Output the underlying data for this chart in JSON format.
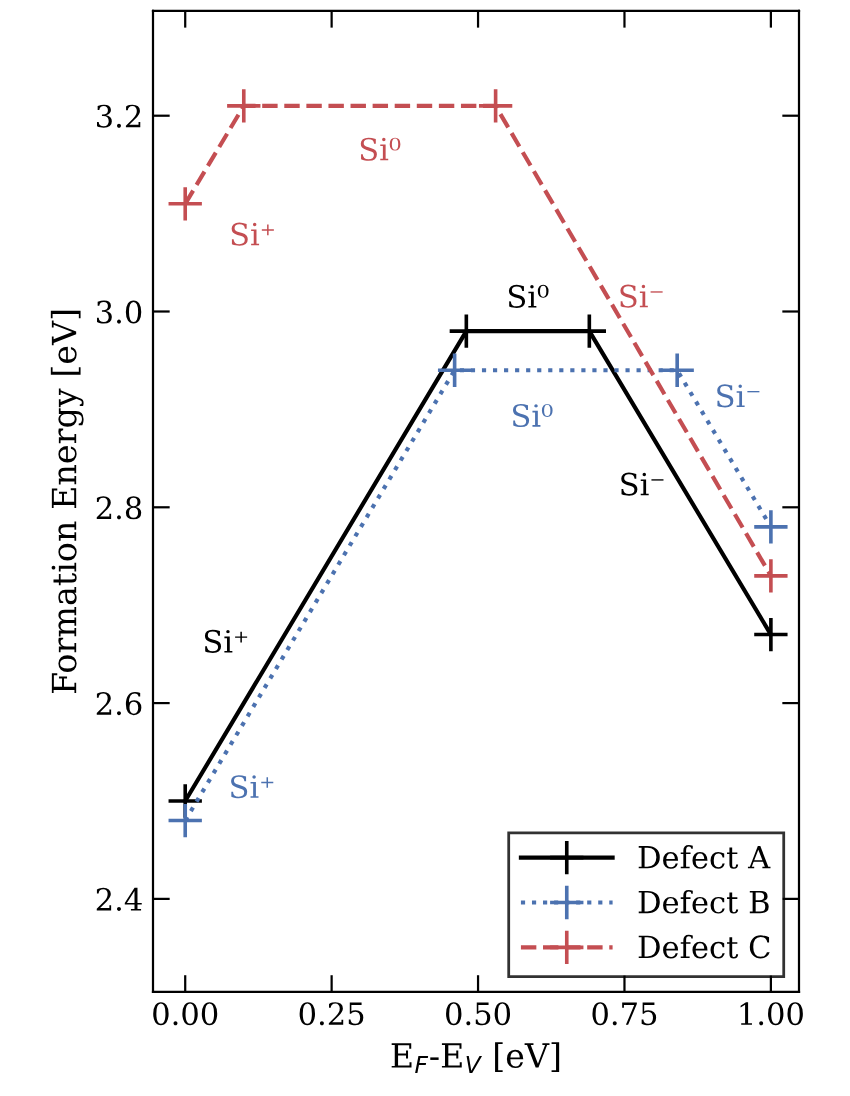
{
  "chart_data": {
    "type": "line",
    "xlabel": "E$_{F}$-E$_{V}$ [eV]",
    "ylabel": "Formation Energy [eV]",
    "xlim": [
      -0.055,
      1.048
    ],
    "ylim": [
      2.305,
      3.307
    ],
    "xticks": [
      {
        "value": 0,
        "label": "0.00"
      },
      0.25,
      {
        "value": 0.5,
        "label": "0.50"
      },
      0.75,
      {
        "value": 1,
        "label": "1.00"
      }
    ],
    "yticks": [
      2.4,
      2.6,
      2.8,
      {
        "value": 3,
        "label": "3.0"
      },
      3.2
    ],
    "series": [
      {
        "name": "Defect A",
        "color": "#000000",
        "line_style": "solid",
        "x": [
          0,
          0.48,
          0.69,
          1.0
        ],
        "values": [
          2.5,
          2.98,
          2.98,
          2.67
        ]
      },
      {
        "name": "Defect B",
        "color": "#4c72b0",
        "line_style": "dotted",
        "x": [
          0,
          0.46,
          0.84,
          1.0
        ],
        "values": [
          2.48,
          2.94,
          2.94,
          2.78
        ]
      },
      {
        "name": "Defect C",
        "color": "#c44e52",
        "line_style": "dashed",
        "x": [
          0,
          0.1,
          0.53,
          1.0
        ],
        "values": [
          3.11,
          3.21,
          3.21,
          2.73
        ]
      }
    ],
    "annotations": [
      "Si⁺",
      "Si⁰",
      "Si⁻",
      "Si⁺",
      "Si⁰",
      "Si⁻",
      "Si⁺",
      "Si⁰",
      "Si⁻"
    ],
    "marker": "cross",
    "legend": "bottom right",
    "grid": false
  }
}
